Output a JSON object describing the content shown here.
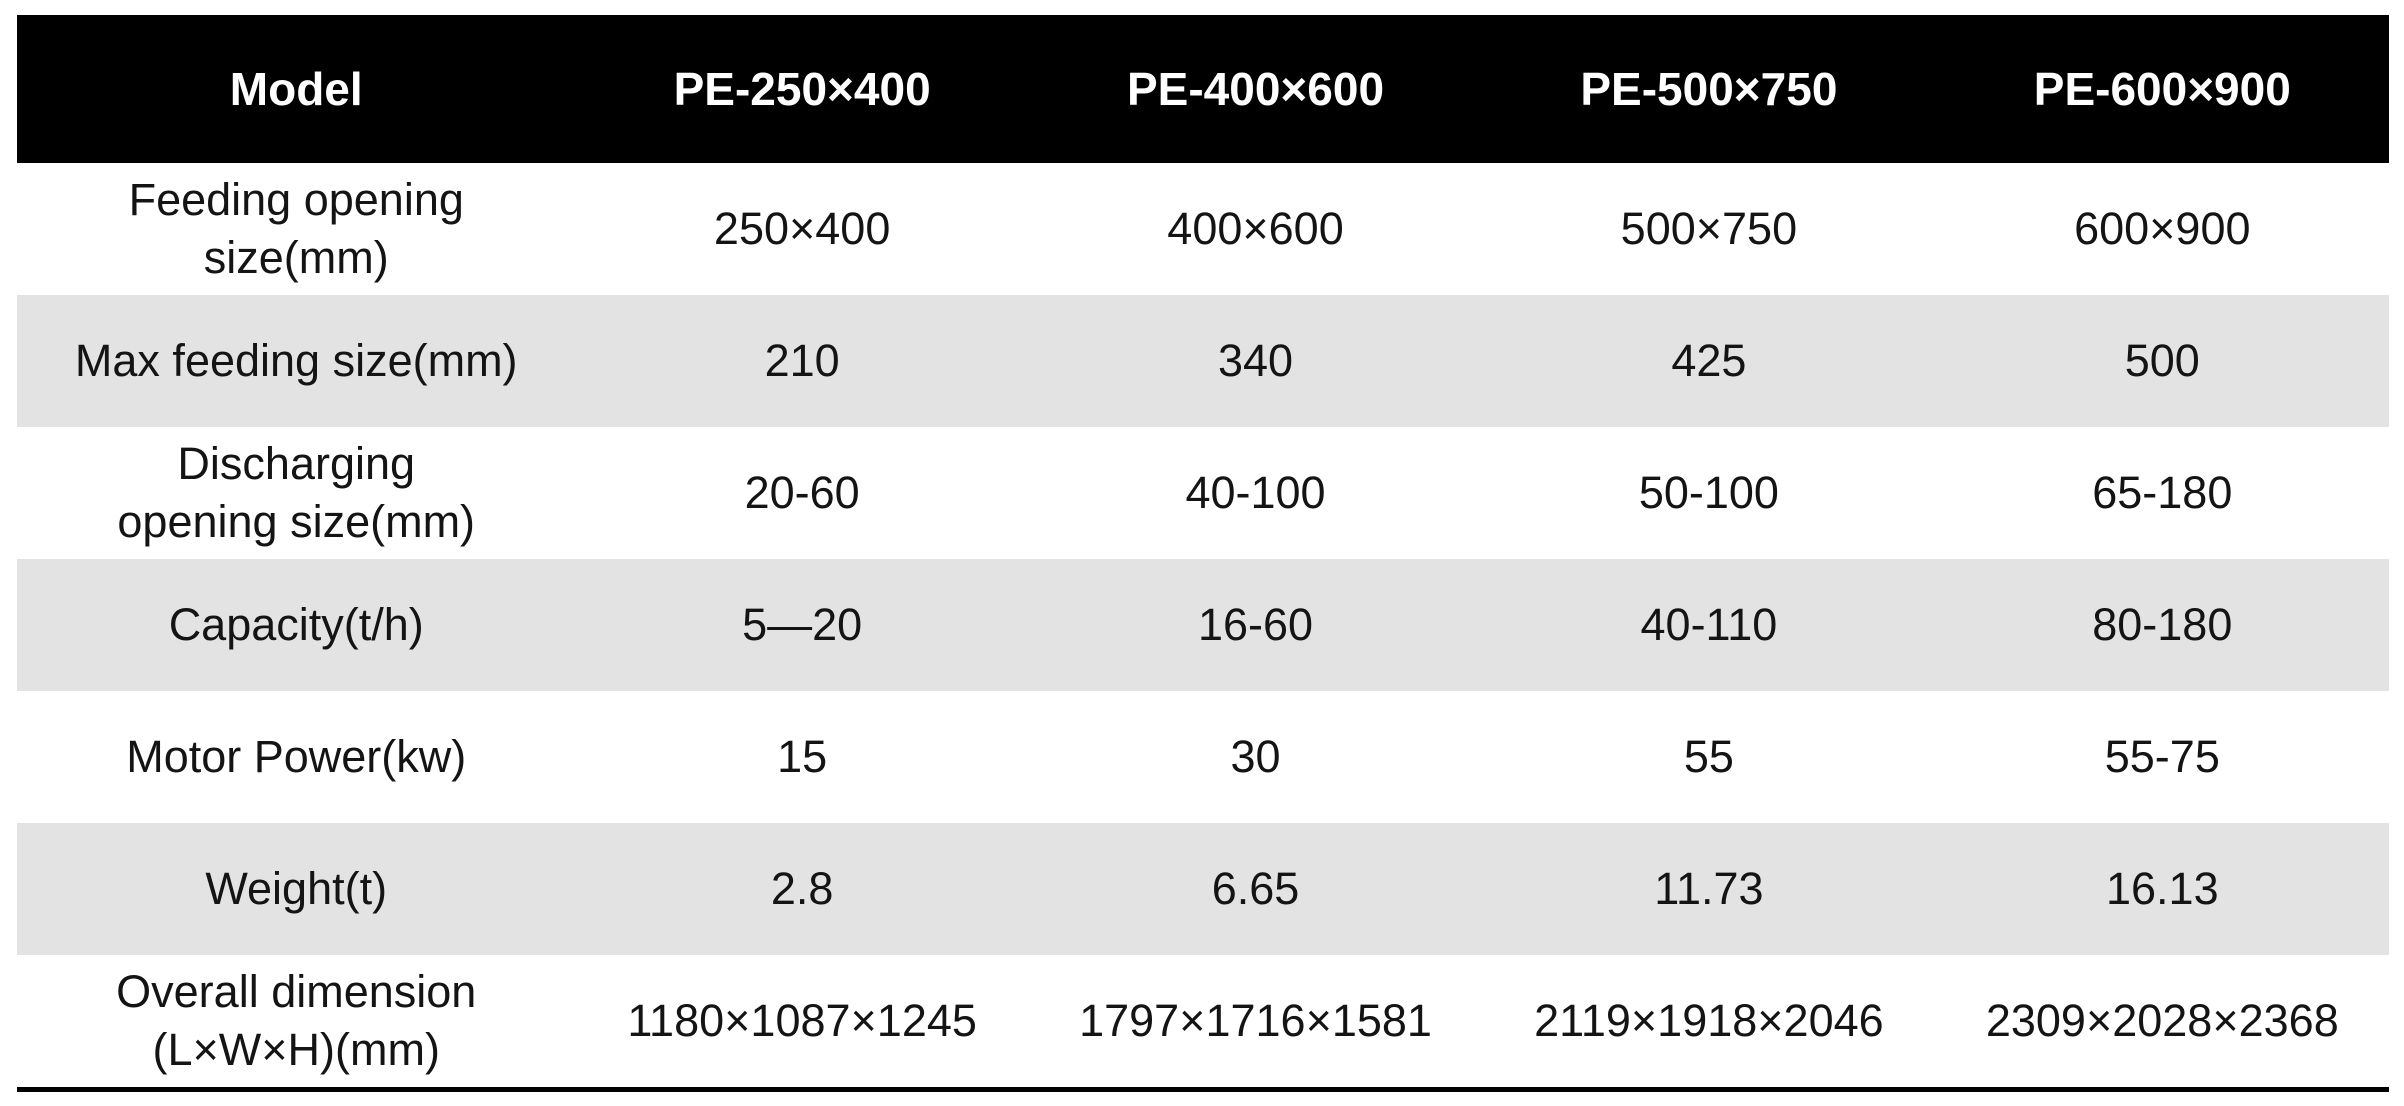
{
  "table": {
    "columns": [
      "Model",
      "PE-250×400",
      "PE-400×600",
      "PE-500×750",
      "PE-600×900"
    ],
    "rows": [
      {
        "label": "Feeding opening\nsize(mm)",
        "values": [
          "250×400",
          "400×600",
          "500×750",
          "600×900"
        ],
        "shaded": false
      },
      {
        "label": "Max feeding size(mm)",
        "values": [
          "210",
          "340",
          "425",
          "500"
        ],
        "shaded": true
      },
      {
        "label": "Discharging\nopening size(mm)",
        "values": [
          "20-60",
          "40-100",
          "50-100",
          "65-180"
        ],
        "shaded": false
      },
      {
        "label": "Capacity(t/h)",
        "values": [
          "5—20",
          "16-60",
          "40-110",
          "80-180"
        ],
        "shaded": true
      },
      {
        "label": "Motor Power(kw)",
        "values": [
          "15",
          "30",
          "55",
          "55-75"
        ],
        "shaded": false
      },
      {
        "label": "Weight(t)",
        "values": [
          "2.8",
          "6.65",
          "11.73",
          "16.13"
        ],
        "shaded": true
      },
      {
        "label": "Overall dimension\n(L×W×H)(mm)",
        "values": [
          "1180×1087×1245",
          "1797×1716×1581",
          "2119×1918×2046",
          "2309×2028×2368"
        ],
        "shaded": false
      }
    ],
    "colors": {
      "header_bg": "#000000",
      "header_text": "#ffffff",
      "stripe_bg": "#e3e3e3",
      "body_text": "#141414",
      "bottom_border": "#000000"
    }
  }
}
